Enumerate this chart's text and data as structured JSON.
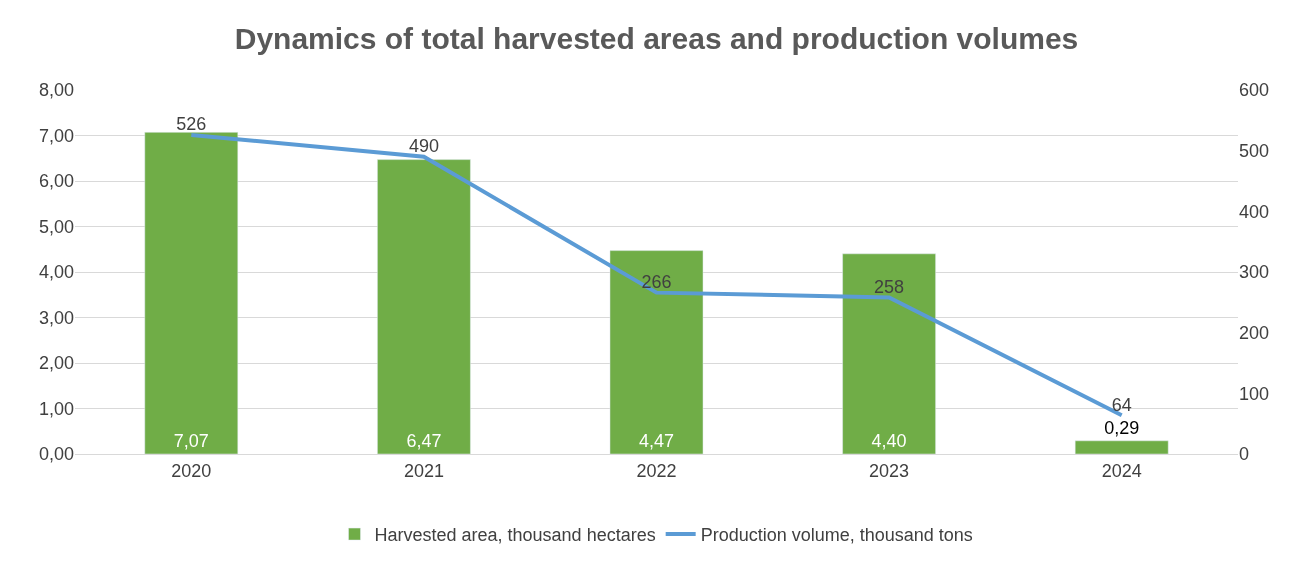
{
  "chart_data": {
    "type": "bar",
    "title": "Dynamics of total harvested areas and production volumes",
    "categories": [
      "2020",
      "2021",
      "2022",
      "2023",
      "2024"
    ],
    "series": [
      {
        "name": "Harvested area, thousand hectares",
        "color": "#70ad47",
        "values": [
          7.07,
          6.47,
          4.47,
          4.4,
          0.29
        ],
        "value_labels": [
          "7,07",
          "6,47",
          "4,47",
          "4,40",
          "0,29"
        ]
      },
      {
        "name": "Production volume, thousand tons",
        "type": "line",
        "axis": "y2",
        "color": "#5b9bd5",
        "values": [
          526,
          490,
          266,
          258,
          64
        ],
        "value_labels": [
          "526",
          "490",
          "266",
          "258",
          "64"
        ]
      }
    ],
    "ylim": [
      0,
      8
    ],
    "yticks": [
      {
        "value": 0,
        "label": "0,00"
      },
      {
        "value": 1,
        "label": "1,00"
      },
      {
        "value": 2,
        "label": "2,00"
      },
      {
        "value": 3,
        "label": "3,00"
      },
      {
        "value": 4,
        "label": "4,00"
      },
      {
        "value": 5,
        "label": "5,00"
      },
      {
        "value": 6,
        "label": "6,00"
      },
      {
        "value": 7,
        "label": "7,00"
      },
      {
        "value": 8,
        "label": "8,00"
      }
    ],
    "y2lim": [
      0,
      600
    ],
    "y2ticks": [
      0,
      100,
      200,
      300,
      400,
      500,
      600
    ],
    "grid": "y",
    "legend": "bottom",
    "marker": "none",
    "line_style": "solid"
  }
}
